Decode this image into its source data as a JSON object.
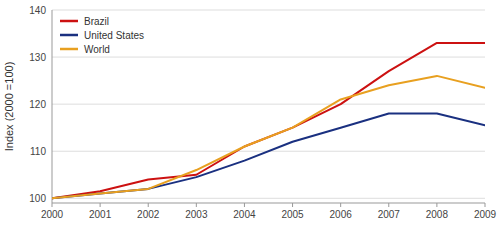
{
  "chart_data": {
    "type": "line",
    "y_label": "Index (2000 =100)",
    "x": [
      2000,
      2001,
      2002,
      2003,
      2004,
      2005,
      2006,
      2007,
      2008,
      2009
    ],
    "series": [
      {
        "name": "Brazil",
        "color": "#cc1111",
        "values": [
          100,
          101.5,
          104,
          105,
          111,
          115,
          120,
          127,
          133,
          133
        ]
      },
      {
        "name": "United States",
        "color": "#1a3080",
        "values": [
          100,
          101,
          102,
          104.5,
          108,
          112,
          115,
          118,
          118,
          115.5
        ]
      },
      {
        "name": "World",
        "color": "#e8a020",
        "values": [
          100,
          101,
          102,
          106,
          111,
          115,
          121,
          124,
          126,
          123.5
        ]
      }
    ],
    "xlim": [
      2000,
      2009
    ],
    "xticks": [
      2000,
      2001,
      2002,
      2003,
      2004,
      2005,
      2006,
      2007,
      2008,
      2009
    ],
    "ylim": [
      99,
      140
    ],
    "yticks": [
      100,
      110,
      120,
      130,
      140
    ],
    "grid": true,
    "legend": "upper left"
  }
}
